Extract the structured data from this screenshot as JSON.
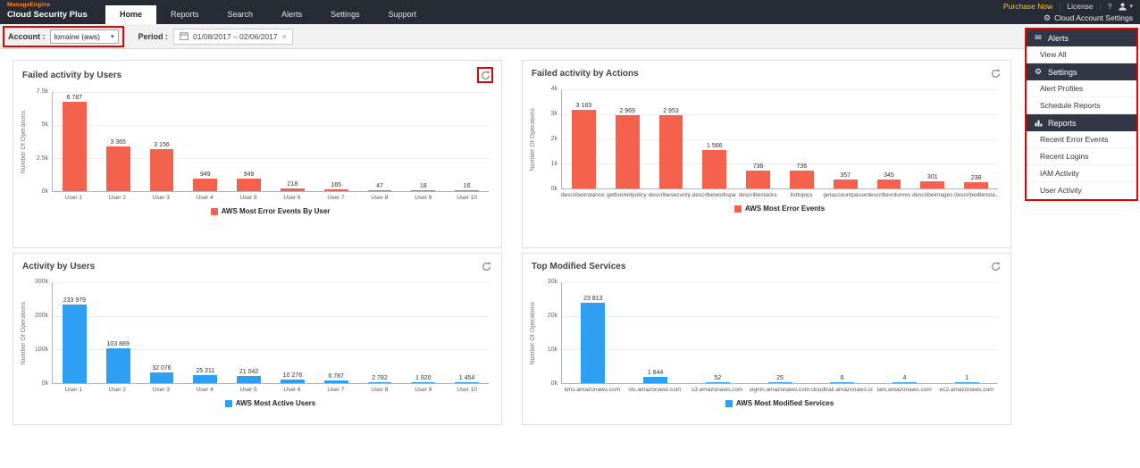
{
  "topbar": {
    "brand_line1": "ManageEngine",
    "brand_line2": "Cloud Security Plus",
    "nav": [
      {
        "label": "Home",
        "active": true
      },
      {
        "label": "Reports"
      },
      {
        "label": "Search"
      },
      {
        "label": "Alerts"
      },
      {
        "label": "Settings"
      },
      {
        "label": "Support"
      }
    ],
    "purchase_now": "Purchase Now",
    "license": "License",
    "help": "?",
    "cloud_account_settings": "Cloud Account Settings"
  },
  "filter_bar": {
    "account_label": "Account :",
    "account_value": "lorraine (aws)",
    "period_label": "Period :",
    "period_value": "01/08/2017 – 02/06/2017"
  },
  "sidebar": {
    "sections": [
      {
        "type": "header",
        "icon": "mail-icon",
        "label": "Alerts"
      },
      {
        "type": "item",
        "label": "View All"
      },
      {
        "type": "header",
        "icon": "gear-icon",
        "label": "Settings"
      },
      {
        "type": "item",
        "label": "Alert Profiles"
      },
      {
        "type": "item",
        "label": "Schedule Reports"
      },
      {
        "type": "header",
        "icon": "chart-icon",
        "label": "Reports"
      },
      {
        "type": "item",
        "label": "Recent Error Events"
      },
      {
        "type": "item",
        "label": "Recent Logins"
      },
      {
        "type": "item",
        "label": "IAM Activity"
      },
      {
        "type": "item",
        "label": "User Activity"
      }
    ]
  },
  "chart_data": [
    {
      "type": "bar",
      "title": "Failed activity by Users",
      "ylabel": "Number Of Operations",
      "ymax": 7500,
      "yticks": [
        "7.5k",
        "5k",
        "2.5k",
        "0k"
      ],
      "categories": [
        "User 1",
        "User 2",
        "User 3",
        "User 4",
        "User 5",
        "User 6",
        "User 7",
        "User 8",
        "User 9",
        "User 10"
      ],
      "values": [
        6787,
        3365,
        3156,
        949,
        949,
        218,
        165,
        47,
        18,
        16
      ],
      "value_labels": [
        "6 787",
        "3 365",
        "3 156",
        "949",
        "949",
        "218",
        "165",
        "47",
        "18",
        "16"
      ],
      "legend": "AWS Most Error Events By User",
      "color": "#f4624d",
      "grid": true,
      "legend_position": "bottom"
    },
    {
      "type": "bar",
      "title": "Failed activity by Actions",
      "ylabel": "Number Of Operations",
      "ymax": 4000,
      "yticks": [
        "4k",
        "3k",
        "2k",
        "1k",
        "0k"
      ],
      "categories": [
        "describeinstances",
        "getbucketpolicy",
        "describesecurity...",
        "describeworkspa...",
        "describestacks",
        "listtopics",
        "getaccountpassw...",
        "describevolumes",
        "describeimages",
        "describedbinsta..."
      ],
      "values": [
        3183,
        2969,
        2953,
        1566,
        736,
        736,
        357,
        345,
        301,
        238
      ],
      "value_labels": [
        "3 183",
        "2 969",
        "2 953",
        "1 566",
        "736",
        "736",
        "357",
        "345",
        "301",
        "238"
      ],
      "legend": "AWS Most Error Events",
      "color": "#f4624d",
      "grid": true,
      "legend_position": "bottom"
    },
    {
      "type": "bar",
      "title": "Activity by Users",
      "ylabel": "Number Of Operations",
      "ymax": 300000,
      "yticks": [
        "300k",
        "200k",
        "100k",
        "0k"
      ],
      "categories": [
        "User 1",
        "User 2",
        "User 3",
        "User 4",
        "User 5",
        "User 6",
        "User 7",
        "User 8",
        "User 9",
        "User 10"
      ],
      "values": [
        233979,
        103889,
        32076,
        25211,
        21042,
        10276,
        6787,
        2782,
        1920,
        1454
      ],
      "value_labels": [
        "233 979",
        "103 889",
        "32 076",
        "25 211",
        "21 042",
        "10 276",
        "6 787",
        "2 782",
        "1 920",
        "1 454"
      ],
      "legend": "AWS Most Active Users",
      "color": "#2e9ff2",
      "grid": true,
      "legend_position": "bottom"
    },
    {
      "type": "bar",
      "title": "Top Modified Services",
      "ylabel": "Number Of Operations",
      "ymax": 30000,
      "yticks": [
        "30k",
        "20k",
        "10k",
        "0k"
      ],
      "categories": [
        "kms.amazonaws.com",
        "sts.amazonaws.com",
        "s3.amazonaws.com",
        "signin.amazonaws.com",
        "cloudtrail.amazonaws.com",
        "iam.amazonaws.com",
        "ec2.amazonaws.com"
      ],
      "values": [
        23813,
        1844,
        52,
        25,
        6,
        4,
        1
      ],
      "value_labels": [
        "23 813",
        "1 844",
        "52",
        "25",
        "6",
        "4",
        "1"
      ],
      "legend": "AWS Most Modified Services",
      "color": "#2e9ff2",
      "grid": true,
      "legend_position": "bottom"
    }
  ]
}
